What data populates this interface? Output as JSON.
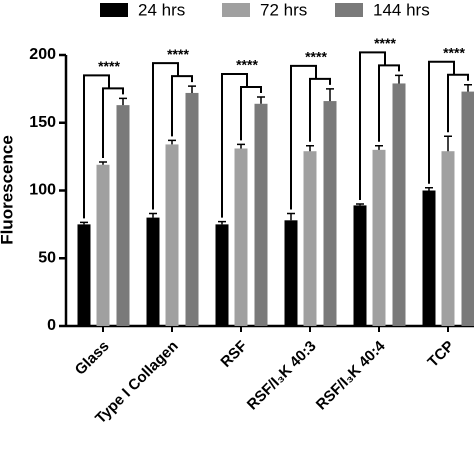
{
  "chart_data": {
    "type": "bar",
    "y_label": "Fluorescence",
    "categories": [
      "Glass",
      "Type I Collagen",
      "RSF",
      "RSF/I₃K 40:3",
      "RSF/I₃K 40:4",
      "TCP"
    ],
    "series": [
      {
        "name": "24 hrs",
        "color": "#000000",
        "values": [
          75,
          80,
          75,
          78,
          89,
          100
        ],
        "errors": [
          1.5,
          3,
          2,
          5,
          1,
          2
        ]
      },
      {
        "name": "72 hrs",
        "color": "#a0a0a0",
        "values": [
          119,
          134,
          131,
          129,
          130,
          129
        ],
        "errors": [
          2,
          3,
          3,
          4,
          3,
          11
        ]
      },
      {
        "name": "144 hrs",
        "color": "#7a7a7a",
        "values": [
          163,
          172,
          164,
          166,
          179,
          173
        ],
        "errors": [
          5,
          5,
          5,
          9,
          6,
          5
        ]
      }
    ],
    "annotations": [
      "****",
      "****",
      "****",
      "****",
      "****",
      "****"
    ],
    "ylim": [
      0,
      200
    ],
    "yticks": [
      0,
      50,
      100,
      150,
      200
    ],
    "legend": "top"
  }
}
